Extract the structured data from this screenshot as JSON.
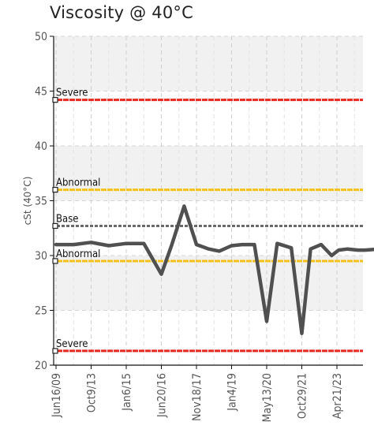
{
  "chart_data": {
    "type": "line",
    "title": "Viscosity @ 40°C",
    "ylabel": "cSt (40°C)",
    "ylim": [
      20,
      50
    ],
    "yticks": [
      20,
      25,
      30,
      35,
      40,
      45,
      50
    ],
    "xticks": [
      "Jun16/09",
      "Oct9/13",
      "Jan6/15",
      "Jun20/16",
      "Nov18/17",
      "Jan4/19",
      "May13/20",
      "Oct29/21",
      "Apr21/23"
    ],
    "grid": true,
    "thresholds": [
      {
        "label": "Severe",
        "value": 44.2,
        "color": "#e8281e"
      },
      {
        "label": "Abnormal",
        "value": 36.0,
        "color": "#f2c21a"
      },
      {
        "label": "Base",
        "value": 32.7,
        "color": "#6a6a6a"
      },
      {
        "label": "Abnormal",
        "value": 29.5,
        "color": "#f2c21a"
      },
      {
        "label": "Severe",
        "value": 21.3,
        "color": "#e8281e"
      }
    ],
    "series": [
      {
        "color": "#505050",
        "x": [
          0,
          0.5,
          1,
          1.5,
          2,
          2.5,
          3,
          3.3,
          3.65,
          4.0,
          4.35,
          4.65,
          5.0,
          5.3,
          5.65,
          6.0,
          6.3,
          6.7,
          7.0,
          7.25,
          7.55,
          7.85,
          8.05,
          8.3,
          8.6,
          8.8,
          9.2
        ],
        "values": [
          31.0,
          31.0,
          31.2,
          30.9,
          31.1,
          31.1,
          28.3,
          31.0,
          34.5,
          31.0,
          30.6,
          30.4,
          30.9,
          31.0,
          31.0,
          24.0,
          31.1,
          30.7,
          22.9,
          30.6,
          31.0,
          30.0,
          30.5,
          30.6,
          30.5,
          30.5,
          30.6
        ]
      }
    ]
  }
}
